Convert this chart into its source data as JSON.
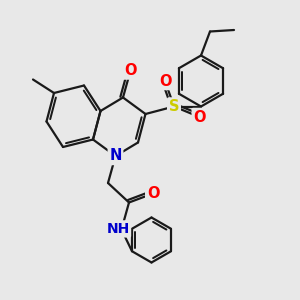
{
  "background_color": "#e8e8e8",
  "bond_color": "#1a1a1a",
  "bond_width": 1.6,
  "atom_colors": {
    "O": "#ff0000",
    "N": "#0000cc",
    "S": "#cccc00",
    "C": "#1a1a1a",
    "H": "#888888"
  },
  "font_size_atom": 10.5
}
